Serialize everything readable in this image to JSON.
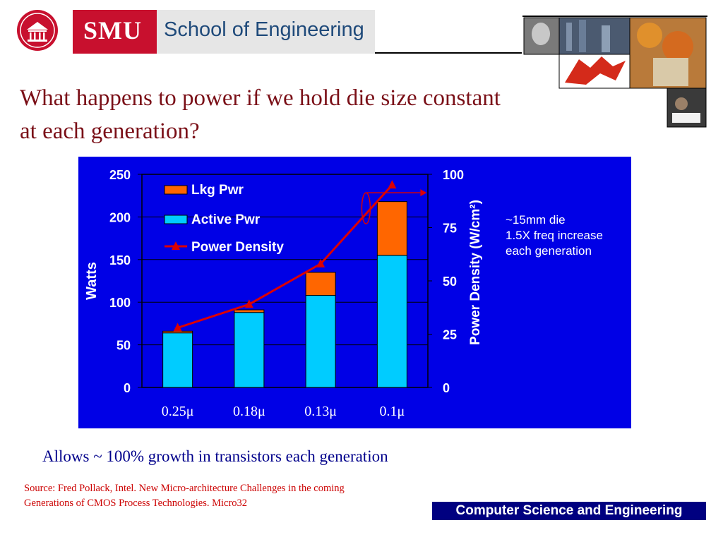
{
  "header": {
    "logo_text": "SMU",
    "banner_text": "School of Engineering"
  },
  "slide": {
    "title": "What happens to power if we hold die size constant at each generation?",
    "note": "Allows ~ 100% growth in transistors each generation",
    "source": "Source: Fred Pollack, Intel. New Micro-architecture Challenges in the coming Generations of CMOS Process Technologies. Micro32",
    "footer": "Computer Science and Engineering"
  },
  "chart_data": {
    "type": "bar",
    "stacked": true,
    "categories": [
      "0.25μ",
      "0.18μ",
      "0.13μ",
      "0.1μ"
    ],
    "series": [
      {
        "name": "Lkg Pwr",
        "values": [
          2,
          3,
          27,
          63
        ],
        "color": "#ff6600"
      },
      {
        "name": "Active Pwr",
        "values": [
          64,
          88,
          108,
          155
        ],
        "color": "#00ccff"
      },
      {
        "name": "Power Density",
        "values": [
          28,
          39,
          58,
          95
        ],
        "axis": "right",
        "color": "#dd0000",
        "type": "line"
      }
    ],
    "ylabel": "Watts",
    "ylim": [
      0,
      250
    ],
    "yticks": [
      0,
      50,
      100,
      150,
      200,
      250
    ],
    "y2label": "Power Density (W/cm²)",
    "y2lim": [
      0,
      100
    ],
    "y2ticks": [
      0,
      25,
      50,
      75,
      100
    ],
    "annotation": [
      "~15mm die",
      "1.5X freq increase",
      "each generation"
    ],
    "legend_position": "top-left",
    "background": "#0000e6",
    "plot_background": "#0000e6"
  }
}
